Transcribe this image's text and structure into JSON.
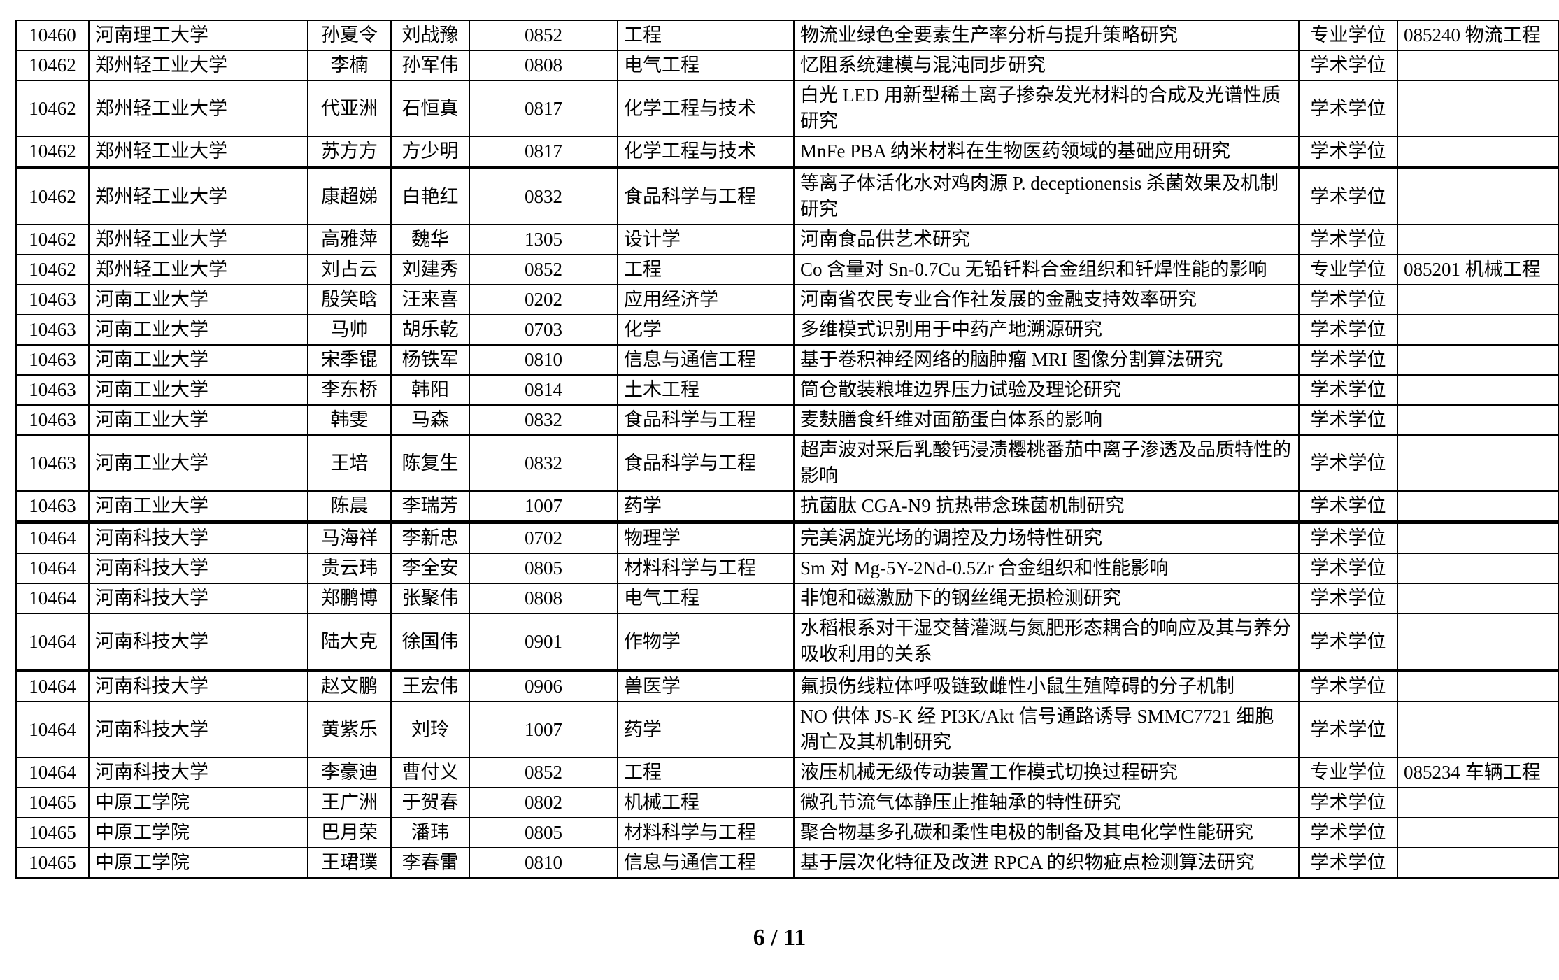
{
  "page": {
    "footer_page_indicator": "6 / 11"
  },
  "table": {
    "column_keys": [
      "code",
      "university",
      "student",
      "advisor",
      "discipline_code",
      "discipline_name",
      "thesis_title",
      "degree_type",
      "specialization"
    ],
    "rows": [
      {
        "code": "10460",
        "university": "河南理工大学",
        "student": "孙夏令",
        "advisor": "刘战豫",
        "discipline_code": "0852",
        "discipline_name": "工程",
        "thesis_title": "物流业绿色全要素生产率分析与提升策略研究",
        "degree_type": "专业学位",
        "specialization": "085240 物流工程",
        "thick_bottom": false
      },
      {
        "code": "10462",
        "university": "郑州轻工业大学",
        "student": "李楠",
        "advisor": "孙军伟",
        "discipline_code": "0808",
        "discipline_name": "电气工程",
        "thesis_title": "忆阻系统建模与混沌同步研究",
        "degree_type": "学术学位",
        "specialization": "",
        "thick_bottom": false
      },
      {
        "code": "10462",
        "university": "郑州轻工业大学",
        "student": "代亚洲",
        "advisor": "石恒真",
        "discipline_code": "0817",
        "discipline_name": "化学工程与技术",
        "thesis_title": "白光 LED 用新型稀土离子掺杂发光材料的合成及光谱性质研究",
        "degree_type": "学术学位",
        "specialization": "",
        "thick_bottom": false
      },
      {
        "code": "10462",
        "university": "郑州轻工业大学",
        "student": "苏方方",
        "advisor": "方少明",
        "discipline_code": "0817",
        "discipline_name": "化学工程与技术",
        "thesis_title": "MnFe PBA 纳米材料在生物医药领域的基础应用研究",
        "degree_type": "学术学位",
        "specialization": "",
        "thick_bottom": true
      },
      {
        "code": "10462",
        "university": "郑州轻工业大学",
        "student": "康超娣",
        "advisor": "白艳红",
        "discipline_code": "0832",
        "discipline_name": "食品科学与工程",
        "thesis_title": "等离子体活化水对鸡肉源 P. deceptionensis 杀菌效果及机制研究",
        "degree_type": "学术学位",
        "specialization": "",
        "thick_bottom": false
      },
      {
        "code": "10462",
        "university": "郑州轻工业大学",
        "student": "高雅萍",
        "advisor": "魏华",
        "discipline_code": "1305",
        "discipline_name": "设计学",
        "thesis_title": "河南食品供艺术研究",
        "degree_type": "学术学位",
        "specialization": "",
        "thick_bottom": false
      },
      {
        "code": "10462",
        "university": "郑州轻工业大学",
        "student": "刘占云",
        "advisor": "刘建秀",
        "discipline_code": "0852",
        "discipline_name": "工程",
        "thesis_title": "Co 含量对 Sn-0.7Cu 无铅钎料合金组织和钎焊性能的影响",
        "degree_type": "专业学位",
        "specialization": "085201 机械工程",
        "thick_bottom": false
      },
      {
        "code": "10463",
        "university": "河南工业大学",
        "student": "殷笑晗",
        "advisor": "汪来喜",
        "discipline_code": "0202",
        "discipline_name": "应用经济学",
        "thesis_title": "河南省农民专业合作社发展的金融支持效率研究",
        "degree_type": "学术学位",
        "specialization": "",
        "thick_bottom": false
      },
      {
        "code": "10463",
        "university": "河南工业大学",
        "student": "马帅",
        "advisor": "胡乐乾",
        "discipline_code": "0703",
        "discipline_name": "化学",
        "thesis_title": "多维模式识别用于中药产地溯源研究",
        "degree_type": "学术学位",
        "specialization": "",
        "thick_bottom": false
      },
      {
        "code": "10463",
        "university": "河南工业大学",
        "student": "宋季锟",
        "advisor": "杨铁军",
        "discipline_code": "0810",
        "discipline_name": "信息与通信工程",
        "thesis_title": "基于卷积神经网络的脑肿瘤 MRI 图像分割算法研究",
        "degree_type": "学术学位",
        "specialization": "",
        "thick_bottom": false
      },
      {
        "code": "10463",
        "university": "河南工业大学",
        "student": "李东桥",
        "advisor": "韩阳",
        "discipline_code": "0814",
        "discipline_name": "土木工程",
        "thesis_title": "筒仓散装粮堆边界压力试验及理论研究",
        "degree_type": "学术学位",
        "specialization": "",
        "thick_bottom": false
      },
      {
        "code": "10463",
        "university": "河南工业大学",
        "student": "韩雯",
        "advisor": "马森",
        "discipline_code": "0832",
        "discipline_name": "食品科学与工程",
        "thesis_title": "麦麸膳食纤维对面筋蛋白体系的影响",
        "degree_type": "学术学位",
        "specialization": "",
        "thick_bottom": false
      },
      {
        "code": "10463",
        "university": "河南工业大学",
        "student": "王培",
        "advisor": "陈复生",
        "discipline_code": "0832",
        "discipline_name": "食品科学与工程",
        "thesis_title": "超声波对采后乳酸钙浸渍樱桃番茄中离子渗透及品质特性的影响",
        "degree_type": "学术学位",
        "specialization": "",
        "thick_bottom": false
      },
      {
        "code": "10463",
        "university": "河南工业大学",
        "student": "陈晨",
        "advisor": "李瑞芳",
        "discipline_code": "1007",
        "discipline_name": "药学",
        "thesis_title": "抗菌肽 CGA-N9 抗热带念珠菌机制研究",
        "degree_type": "学术学位",
        "specialization": "",
        "thick_bottom": true
      },
      {
        "code": "10464",
        "university": "河南科技大学",
        "student": "马海祥",
        "advisor": "李新忠",
        "discipline_code": "0702",
        "discipline_name": "物理学",
        "thesis_title": "完美涡旋光场的调控及力场特性研究",
        "degree_type": "学术学位",
        "specialization": "",
        "thick_bottom": false
      },
      {
        "code": "10464",
        "university": "河南科技大学",
        "student": "贵云玮",
        "advisor": "李全安",
        "discipline_code": "0805",
        "discipline_name": "材料科学与工程",
        "thesis_title": "Sm 对 Mg-5Y-2Nd-0.5Zr 合金组织和性能影响",
        "degree_type": "学术学位",
        "specialization": "",
        "thick_bottom": false
      },
      {
        "code": "10464",
        "university": "河南科技大学",
        "student": "郑鹏博",
        "advisor": "张聚伟",
        "discipline_code": "0808",
        "discipline_name": "电气工程",
        "thesis_title": "非饱和磁激励下的钢丝绳无损检测研究",
        "degree_type": "学术学位",
        "specialization": "",
        "thick_bottom": false
      },
      {
        "code": "10464",
        "university": "河南科技大学",
        "student": "陆大克",
        "advisor": "徐国伟",
        "discipline_code": "0901",
        "discipline_name": "作物学",
        "thesis_title": "水稻根系对干湿交替灌溉与氮肥形态耦合的响应及其与养分吸收利用的关系",
        "degree_type": "学术学位",
        "specialization": "",
        "thick_bottom": true
      },
      {
        "code": "10464",
        "university": "河南科技大学",
        "student": "赵文鹏",
        "advisor": "王宏伟",
        "discipline_code": "0906",
        "discipline_name": "兽医学",
        "thesis_title": "氟损伤线粒体呼吸链致雌性小鼠生殖障碍的分子机制",
        "degree_type": "学术学位",
        "specialization": "",
        "thick_bottom": false
      },
      {
        "code": "10464",
        "university": "河南科技大学",
        "student": "黄紫乐",
        "advisor": "刘玲",
        "discipline_code": "1007",
        "discipline_name": "药学",
        "thesis_title": "NO 供体 JS-K 经 PI3K/Akt 信号通路诱导 SMMC7721 细胞凋亡及其机制研究",
        "degree_type": "学术学位",
        "specialization": "",
        "thick_bottom": false
      },
      {
        "code": "10464",
        "university": "河南科技大学",
        "student": "李豪迪",
        "advisor": "曹付义",
        "discipline_code": "0852",
        "discipline_name": "工程",
        "thesis_title": "液压机械无级传动装置工作模式切换过程研究",
        "degree_type": "专业学位",
        "specialization": "085234 车辆工程",
        "thick_bottom": false
      },
      {
        "code": "10465",
        "university": "中原工学院",
        "student": "王广洲",
        "advisor": "于贺春",
        "discipline_code": "0802",
        "discipline_name": "机械工程",
        "thesis_title": "微孔节流气体静压止推轴承的特性研究",
        "degree_type": "学术学位",
        "specialization": "",
        "thick_bottom": false
      },
      {
        "code": "10465",
        "university": "中原工学院",
        "student": "巴月荣",
        "advisor": "潘玮",
        "discipline_code": "0805",
        "discipline_name": "材料科学与工程",
        "thesis_title": "聚合物基多孔碳和柔性电极的制备及其电化学性能研究",
        "degree_type": "学术学位",
        "specialization": "",
        "thick_bottom": false
      },
      {
        "code": "10465",
        "university": "中原工学院",
        "student": "王珺璞",
        "advisor": "李春雷",
        "discipline_code": "0810",
        "discipline_name": "信息与通信工程",
        "thesis_title": "基于层次化特征及改进 RPCA 的织物疵点检测算法研究",
        "degree_type": "学术学位",
        "specialization": "",
        "thick_bottom": false
      }
    ]
  }
}
